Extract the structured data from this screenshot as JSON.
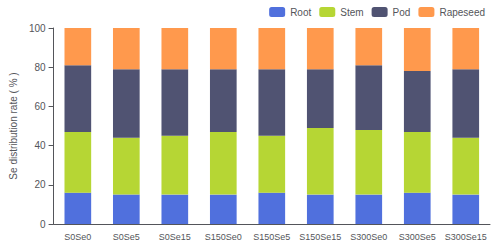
{
  "chart_data": {
    "type": "bar",
    "stacked": true,
    "categories": [
      "S0Se0",
      "S0Se5",
      "S0Se15",
      "S150Se0",
      "S150Se5",
      "S150Se15",
      "S300Se0",
      "S300Se5",
      "S300Se15"
    ],
    "series": [
      {
        "name": "Root",
        "values": [
          16,
          15,
          15,
          15,
          16,
          15,
          15,
          16,
          15
        ]
      },
      {
        "name": "Stem",
        "values": [
          31,
          29,
          30,
          32,
          29,
          34,
          33,
          31,
          29
        ]
      },
      {
        "name": "Pod",
        "values": [
          34,
          35,
          34,
          32,
          34,
          30,
          33,
          31,
          35
        ]
      },
      {
        "name": "Rapeseed",
        "values": [
          19,
          21,
          21,
          21,
          21,
          21,
          19,
          22,
          21
        ]
      }
    ],
    "ylabel": "Se distribution rate ( % )",
    "ylim": [
      0,
      100
    ],
    "yticks": [
      0,
      20,
      40,
      60,
      80,
      100
    ],
    "grid": false,
    "legend": "upper right"
  }
}
